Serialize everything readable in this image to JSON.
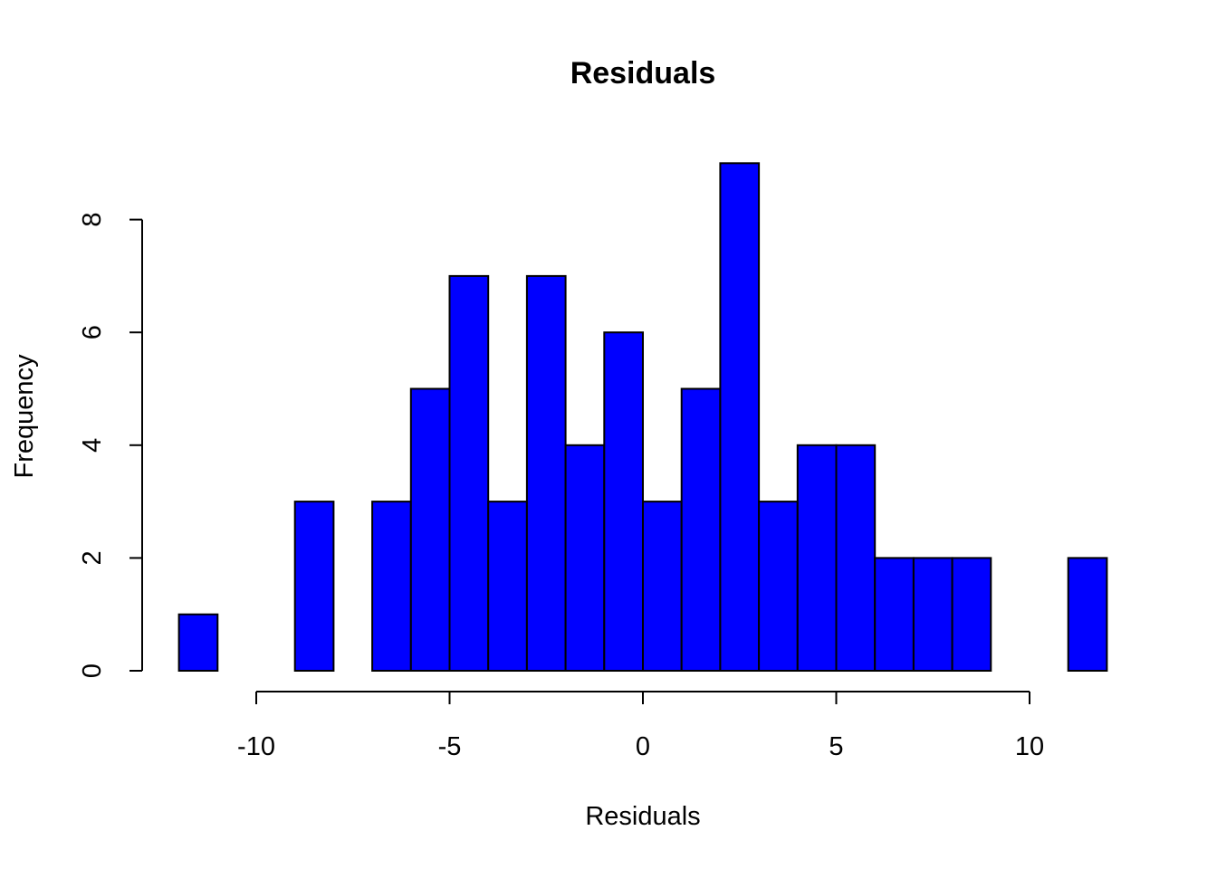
{
  "chart_data": {
    "type": "bar",
    "title": "Residuals",
    "xlabel": "Residuals",
    "ylabel": "Frequency",
    "bar_color": "#0000ff",
    "border_color": "#000000",
    "bin_edges": [
      -12,
      -11,
      -10,
      -9,
      -8,
      -7,
      -6,
      -5,
      -4,
      -3,
      -2,
      -1,
      0,
      1,
      2,
      3,
      4,
      5,
      6,
      7,
      8,
      9,
      10,
      11,
      12
    ],
    "values": [
      1,
      0,
      0,
      3,
      0,
      3,
      5,
      7,
      3,
      7,
      4,
      6,
      3,
      5,
      9,
      3,
      4,
      4,
      2,
      2,
      2,
      0,
      0,
      2
    ],
    "xlim": [
      -12,
      12
    ],
    "ylim": [
      0,
      9
    ],
    "x_ticks": [
      -10,
      -5,
      0,
      5,
      10
    ],
    "x_tick_labels": [
      "-10",
      "-5",
      "0",
      "5",
      "10"
    ],
    "y_ticks": [
      0,
      2,
      4,
      6,
      8
    ],
    "y_tick_labels": [
      "0",
      "2",
      "4",
      "6",
      "8"
    ],
    "grid": false
  }
}
